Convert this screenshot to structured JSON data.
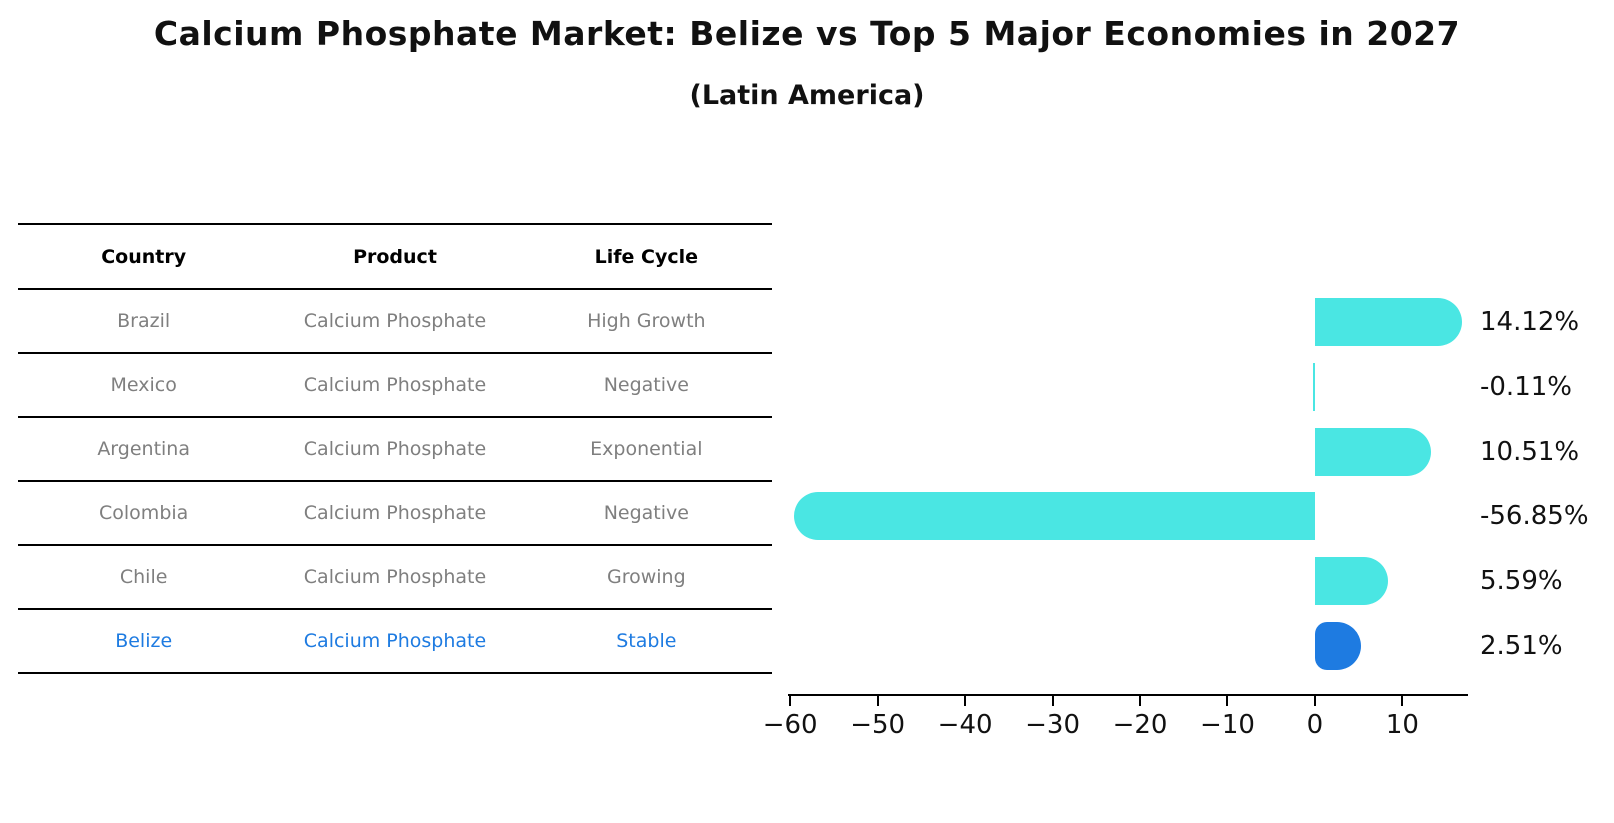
{
  "title": "Calcium Phosphate Market: Belize vs Top 5 Major Economies in 2027",
  "subtitle": "(Latin America)",
  "table": {
    "headers": [
      "Country",
      "Product",
      "Life Cycle"
    ],
    "rows": [
      {
        "country": "Brazil",
        "product": "Calcium Phosphate",
        "life_cycle": "High Growth",
        "highlight": false
      },
      {
        "country": "Mexico",
        "product": "Calcium Phosphate",
        "life_cycle": "Negative",
        "highlight": false
      },
      {
        "country": "Argentina",
        "product": "Calcium Phosphate",
        "life_cycle": "Exponential",
        "highlight": false
      },
      {
        "country": "Colombia",
        "product": "Calcium Phosphate",
        "life_cycle": "Negative",
        "highlight": false
      },
      {
        "country": "Chile",
        "product": "Calcium Phosphate",
        "life_cycle": "Growing",
        "highlight": false
      },
      {
        "country": "Belize",
        "product": "Calcium Phosphate",
        "life_cycle": "Stable",
        "highlight": true
      }
    ]
  },
  "chart_data": {
    "type": "bar",
    "orientation": "horizontal",
    "categories": [
      "Brazil",
      "Mexico",
      "Argentina",
      "Colombia",
      "Chile",
      "Belize"
    ],
    "values": [
      14.12,
      -0.11,
      10.51,
      -56.85,
      5.59,
      2.51
    ],
    "value_labels": [
      "14.12%",
      "-0.11%",
      "10.51%",
      "-56.85%",
      "5.59%",
      "2.51%"
    ],
    "x_ticks": [
      -60,
      -50,
      -40,
      -30,
      -20,
      -10,
      0,
      10
    ],
    "x_tick_labels": [
      "−60",
      "−50",
      "−40",
      "−30",
      "−20",
      "−10",
      "0",
      "10"
    ],
    "xlim": [
      -60.25,
      17.5
    ],
    "grid": false,
    "legend": "none",
    "highlight_index": 5
  },
  "colors": {
    "bar": "#4ae6e3",
    "highlight": "#1e7be1",
    "text_gray": "#7f7f7f",
    "text_black": "#111111",
    "rule": "#000000"
  }
}
